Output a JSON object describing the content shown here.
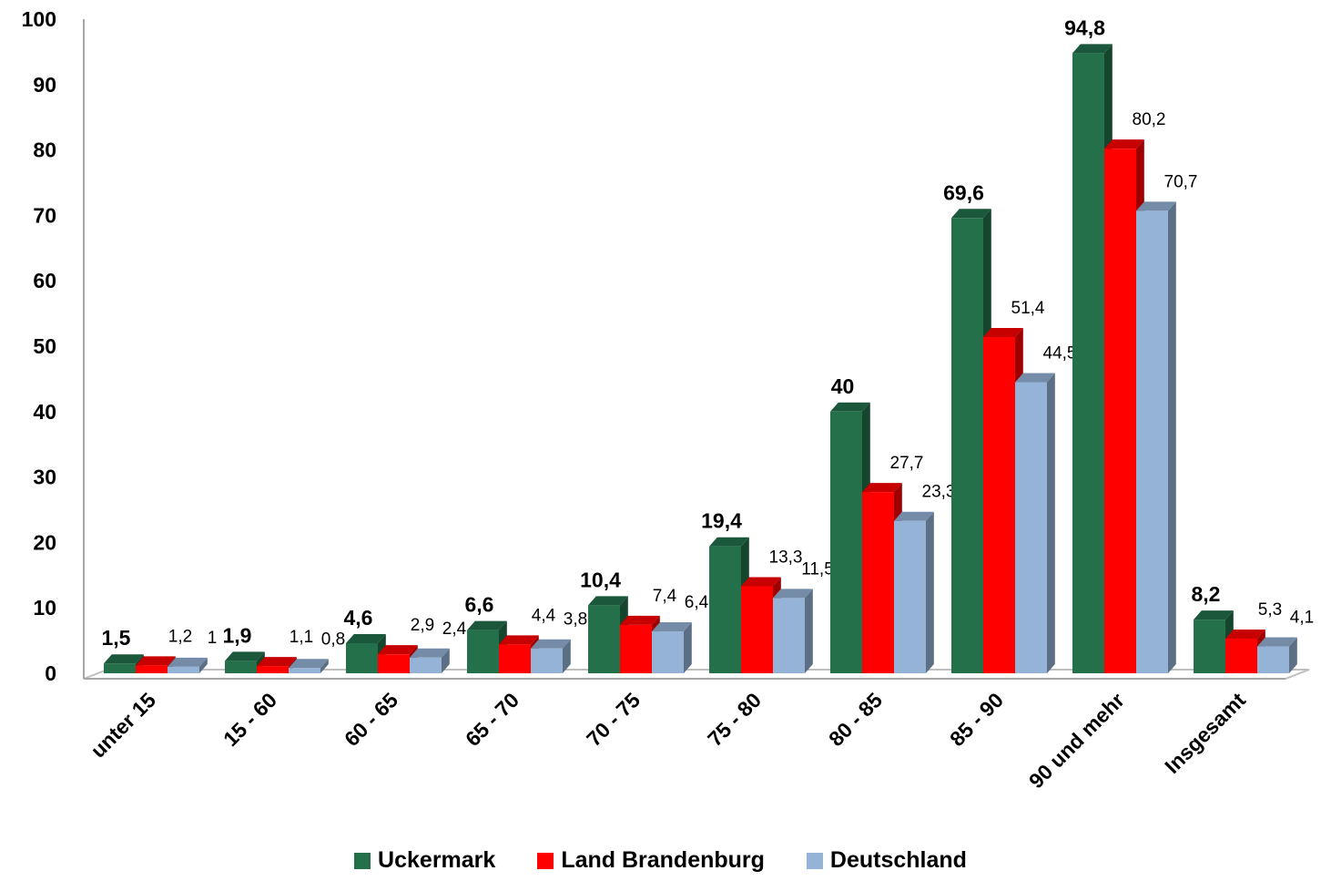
{
  "chart_data": {
    "type": "bar",
    "categories": [
      "unter 15",
      "15 - 60",
      "60 - 65",
      "65 - 70",
      "70 - 75",
      "75 - 80",
      "80 - 85",
      "85 - 90",
      "90 und mehr",
      "Insgesamt"
    ],
    "series": [
      {
        "name": "Uckermark",
        "color": "#23704a",
        "values": [
          1.5,
          1.9,
          4.6,
          6.6,
          10.4,
          19.4,
          40,
          69.6,
          94.8,
          8.2
        ],
        "labels": [
          "1,5",
          "1,9",
          "4,6",
          "6,6",
          "10,4",
          "19,4",
          "40",
          "69,6",
          "94,8",
          "8,2"
        ]
      },
      {
        "name": "Land Brandenburg",
        "color": "#ff0000",
        "values": [
          1.2,
          1.1,
          2.9,
          4.4,
          7.4,
          13.3,
          27.7,
          51.4,
          80.2,
          5.3
        ],
        "labels": [
          "1,2",
          "1,1",
          "2,9",
          "4,4",
          "7,4",
          "13,3",
          "27,7",
          "51,4",
          "80,2",
          "5,3"
        ]
      },
      {
        "name": "Deutschland",
        "color": "#95b3d7",
        "values": [
          1,
          0.8,
          2.4,
          3.8,
          6.4,
          11.5,
          23.3,
          44.5,
          70.7,
          4.1
        ],
        "labels": [
          "1",
          "0,8",
          "2,4",
          "3,8",
          "6,4",
          "11,5",
          "23,3",
          "44,5",
          "70,7",
          "4,1"
        ]
      }
    ],
    "y_ticks": [
      "0",
      "10",
      "20",
      "30",
      "40",
      "50",
      "60",
      "70",
      "80",
      "90",
      "100"
    ],
    "ylim": [
      0,
      100
    ],
    "grid": false,
    "legend_position": "bottom",
    "style": "3d-clustered-column"
  }
}
